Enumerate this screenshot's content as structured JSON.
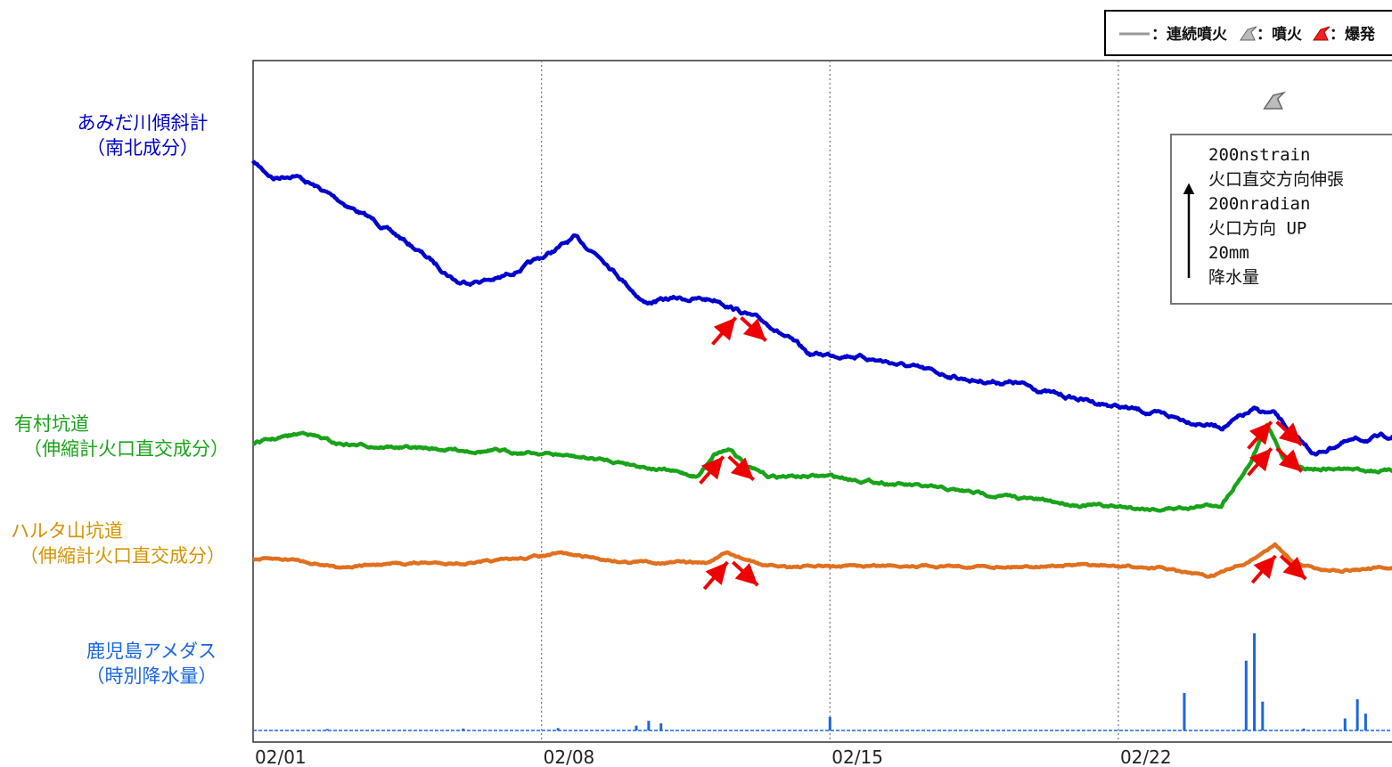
{
  "legend": {
    "continuous": "：連続噴火",
    "eruption": "：噴火",
    "explosion": "：爆発"
  },
  "scale_box": {
    "lines": [
      "200nstrain",
      " 火口直交方向伸張",
      "200nradian",
      " 火口方向 UP",
      "20mm",
      " 降水量"
    ]
  },
  "chart_data": {
    "type": "line",
    "title": "",
    "xlabel": "",
    "ylabel": "",
    "x_unit": "day of month (February)",
    "xlim": [
      1,
      28.9
    ],
    "x_ticks": [
      {
        "x": 1,
        "label": "02/01"
      },
      {
        "x": 8,
        "label": "02/08"
      },
      {
        "x": 15,
        "label": "02/15"
      },
      {
        "x": 22,
        "label": "02/22"
      }
    ],
    "grid": "vertical dotted at ticks",
    "series": [
      {
        "name": "あみだ川傾斜計\n（南北成分）",
        "unit": "nradian (relative)",
        "color": "#0000cc",
        "points": [
          [
            1,
            0
          ],
          [
            1.5,
            -20
          ],
          [
            2,
            -15
          ],
          [
            3,
            -45
          ],
          [
            4,
            -75
          ],
          [
            5,
            -110
          ],
          [
            6,
            -150
          ],
          [
            7,
            -145
          ],
          [
            8,
            -120
          ],
          [
            8.8,
            -95
          ],
          [
            9.5,
            -120
          ],
          [
            10.5,
            -175
          ],
          [
            11.3,
            -170
          ],
          [
            12.3,
            -172
          ],
          [
            12.8,
            -185
          ],
          [
            13.6,
            -205
          ],
          [
            14.5,
            -240
          ],
          [
            15.5,
            -240
          ],
          [
            16.5,
            -250
          ],
          [
            17.5,
            -262
          ],
          [
            18.5,
            -272
          ],
          [
            19.5,
            -275
          ],
          [
            20.5,
            -290
          ],
          [
            21.5,
            -300
          ],
          [
            22.5,
            -310
          ],
          [
            23.5,
            -320
          ],
          [
            24.5,
            -330
          ],
          [
            25.3,
            -310
          ],
          [
            25.8,
            -315
          ],
          [
            26.3,
            -345
          ],
          [
            26.8,
            -365
          ],
          [
            27.4,
            -350
          ],
          [
            28.9,
            -340
          ]
        ]
      },
      {
        "name": "有村坑道\n（伸縮計火口直交成分）",
        "unit": "nstrain (relative)",
        "color": "#1aa31a",
        "points": [
          [
            1,
            0
          ],
          [
            2.3,
            12
          ],
          [
            3,
            0
          ],
          [
            5,
            -5
          ],
          [
            8,
            -10
          ],
          [
            10,
            -20
          ],
          [
            11.8,
            -35
          ],
          [
            12.2,
            -10
          ],
          [
            12.6,
            -5
          ],
          [
            13,
            -25
          ],
          [
            13.5,
            -35
          ],
          [
            15,
            -35
          ],
          [
            17,
            -45
          ],
          [
            19,
            -55
          ],
          [
            21,
            -65
          ],
          [
            23,
            -70
          ],
          [
            24.5,
            -65
          ],
          [
            25.2,
            -20
          ],
          [
            25.6,
            20
          ],
          [
            26,
            -15
          ],
          [
            26.3,
            -25
          ],
          [
            28.9,
            -30
          ]
        ]
      },
      {
        "name": "ハルタ山坑道\n（伸縮計火口直交成分）",
        "unit": "nstrain (relative)",
        "color": "#e07020",
        "points": [
          [
            1,
            0
          ],
          [
            2,
            0
          ],
          [
            3,
            -10
          ],
          [
            5,
            -5
          ],
          [
            6.5,
            -5
          ],
          [
            8.5,
            8
          ],
          [
            10,
            -3
          ],
          [
            12,
            -5
          ],
          [
            12.5,
            8
          ],
          [
            13.5,
            -10
          ],
          [
            15,
            -10
          ],
          [
            17,
            -8
          ],
          [
            19,
            -10
          ],
          [
            21,
            -8
          ],
          [
            23,
            -12
          ],
          [
            24.2,
            -25
          ],
          [
            25,
            -8
          ],
          [
            25.8,
            20
          ],
          [
            26.3,
            -5
          ],
          [
            27,
            -15
          ],
          [
            28.9,
            -12
          ]
        ]
      },
      {
        "name": "鹿児島アメダス\n（時別降水量）",
        "unit": "mm/hour",
        "color": "#1a66e0",
        "type": "bar",
        "points": [
          [
            2.8,
            0.3
          ],
          [
            6.1,
            0.4
          ],
          [
            8.4,
            0.5
          ],
          [
            10.3,
            1.0
          ],
          [
            10.6,
            2.0
          ],
          [
            10.9,
            1.5
          ],
          [
            15,
            2.8
          ],
          [
            23.6,
            7.8
          ],
          [
            25.1,
            14.5
          ],
          [
            25.3,
            20.2
          ],
          [
            25.5,
            6.0
          ],
          [
            26.5,
            0.4
          ],
          [
            27.5,
            2.5
          ],
          [
            27.8,
            6.5
          ],
          [
            28.0,
            3.5
          ],
          [
            28.7,
            0.5
          ]
        ]
      }
    ],
    "eruption_markers": [
      {
        "kind": "eruption",
        "x": 25.8
      }
    ],
    "annotations": [
      {
        "kind": "peak arrows",
        "series": "あみだ川傾斜計\n（南北成分）",
        "x": 12.8
      },
      {
        "kind": "peak arrows",
        "series": "あみだ川傾斜計\n（南北成分）",
        "x": 25.8
      },
      {
        "kind": "peak arrows",
        "series": "有村坑道\n（伸縮計火口直交成分）",
        "x": 12.5
      },
      {
        "kind": "peak arrows",
        "series": "有村坑道\n（伸縮計火口直交成分）",
        "x": 25.8
      },
      {
        "kind": "peak arrows",
        "series": "ハルタ山坑道\n（伸縮計火口直交成分）",
        "x": 12.6
      },
      {
        "kind": "peak arrows",
        "series": "ハルタ山坑道\n（伸縮計火口直交成分）",
        "x": 25.9
      }
    ],
    "colors": {
      "axis": "#333333",
      "grid": "#777777",
      "arrow": "#ee0000",
      "label_blue": "#0000cc",
      "label_green": "#1aa31a",
      "label_orange": "#d49400",
      "label_rain": "#1a66e0"
    }
  }
}
